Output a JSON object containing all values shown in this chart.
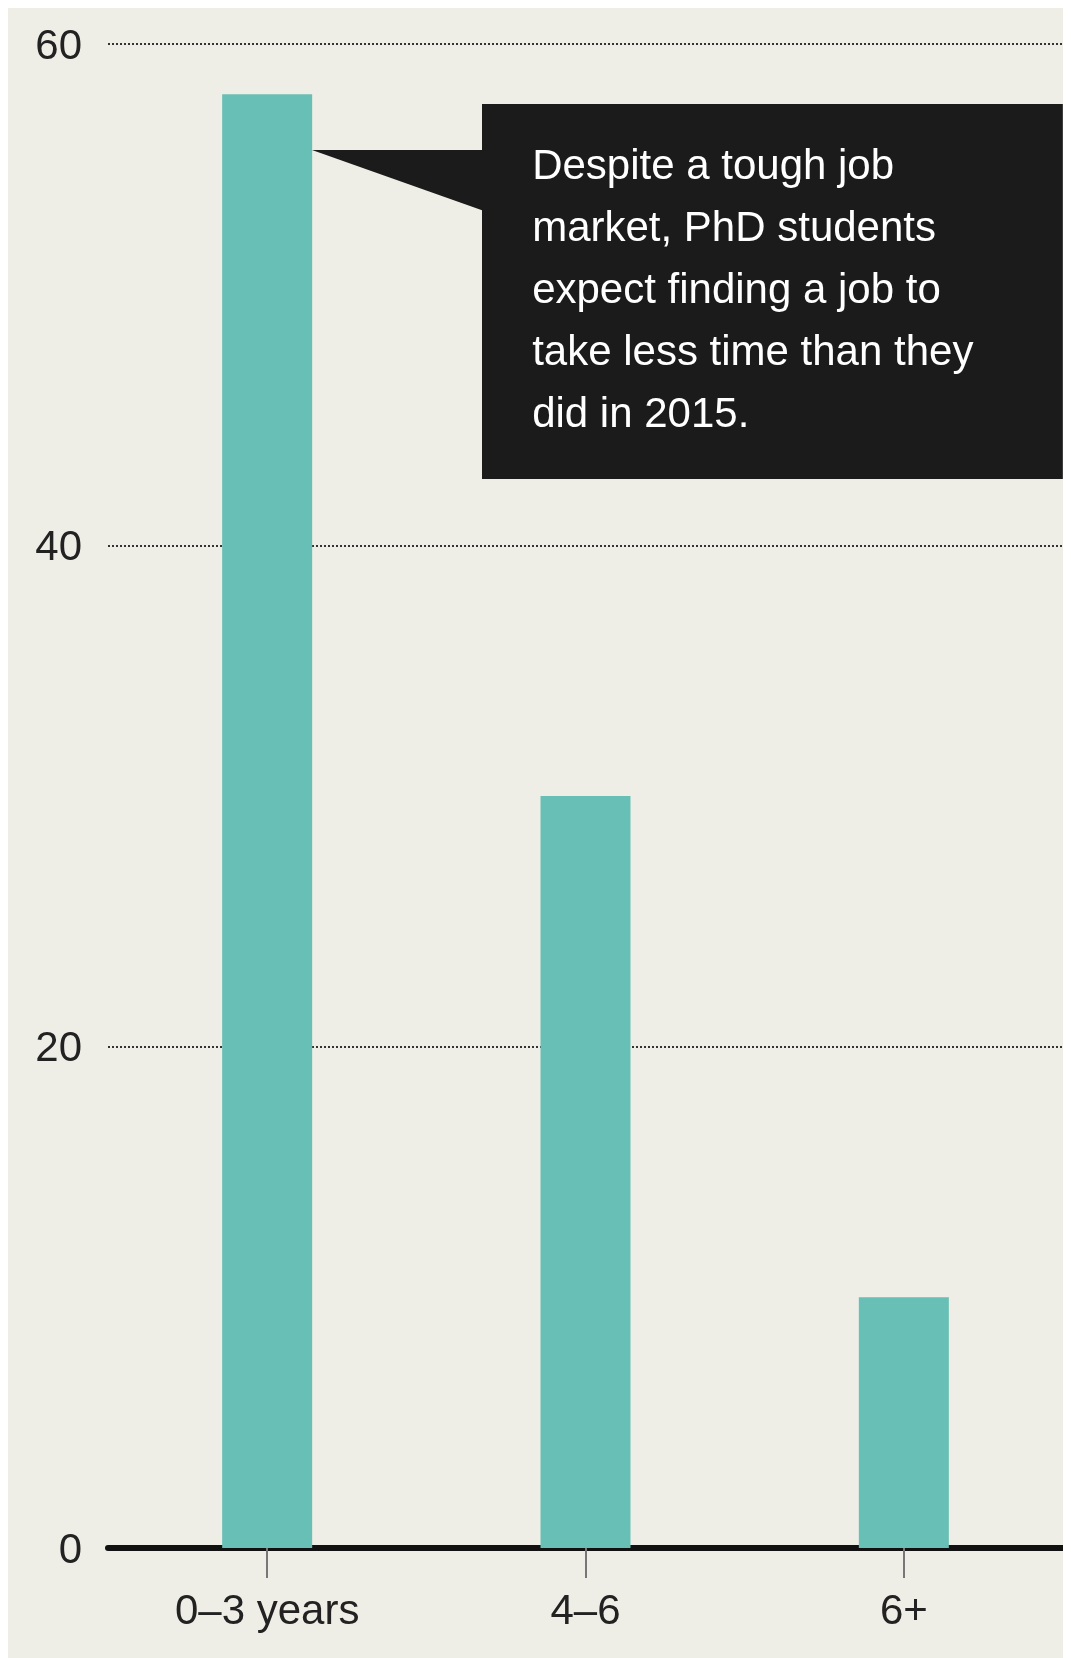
{
  "chart_data": {
    "type": "bar",
    "categories": [
      "0–3 years",
      "4–6",
      "6+"
    ],
    "values": [
      58,
      30,
      10
    ],
    "color": "#68bfb5",
    "ylim": [
      0,
      60
    ],
    "yticks": [
      0,
      20,
      40,
      60
    ],
    "grid": "y",
    "line_style": "dotted",
    "annotations": [
      "Despite a tough job market, PhD students expect finding a job to take less time than they did in 2015."
    ]
  }
}
